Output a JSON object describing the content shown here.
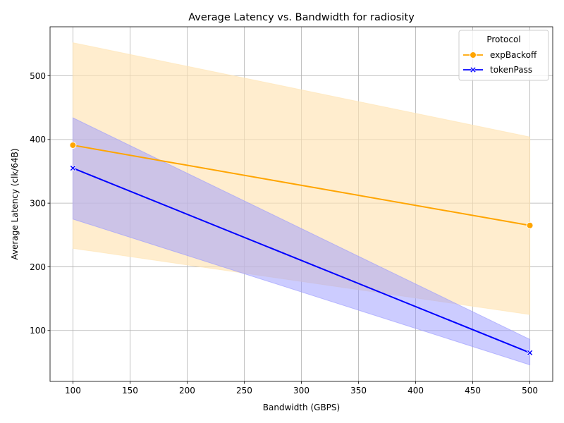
{
  "chart_data": {
    "type": "line",
    "title": "Average Latency vs. Bandwidth for radiosity",
    "xlabel": "Bandwidth (GBPS)",
    "ylabel": "Average Latency (clk/64B)",
    "xlim": [
      80,
      520
    ],
    "ylim": [
      20,
      577
    ],
    "xticks": [
      100,
      150,
      200,
      250,
      300,
      350,
      400,
      450,
      500
    ],
    "yticks": [
      100,
      200,
      300,
      400,
      500
    ],
    "grid": true,
    "legend": {
      "title": "Protocol",
      "placement": "top-right"
    },
    "series": [
      {
        "name": "expBackoff",
        "color": "#ffa500",
        "band_color": "#ffe4b3",
        "marker": "circle",
        "x": [
          100,
          500
        ],
        "values": [
          391,
          265
        ],
        "band_low": [
          229,
          125
        ],
        "band_high": [
          552,
          404
        ]
      },
      {
        "name": "tokenPass",
        "color": "#0000ff",
        "band_color": "#9999ff",
        "marker": "x",
        "x": [
          100,
          500
        ],
        "values": [
          355,
          65
        ],
        "band_low": [
          275,
          46
        ],
        "band_high": [
          434,
          86
        ]
      }
    ]
  }
}
